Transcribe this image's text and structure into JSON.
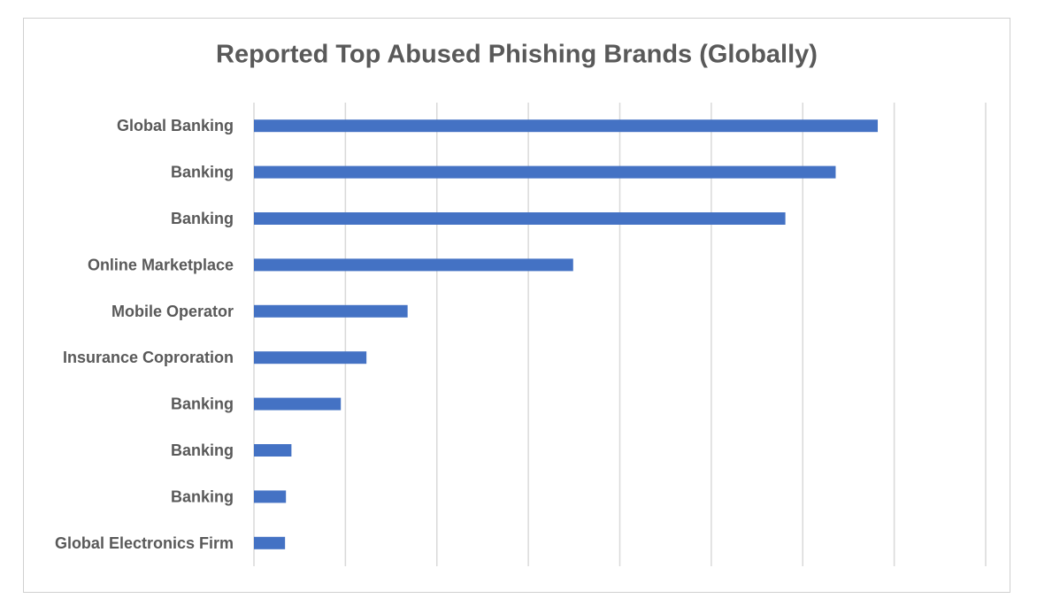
{
  "chart_data": {
    "type": "bar",
    "orientation": "horizontal",
    "title": "Reported Top Abused Phishing Brands (Globally)",
    "xlabel": "",
    "ylabel": "",
    "categories": [
      "Global Banking",
      "Banking",
      "Banking",
      "Online Marketplace",
      "Mobile Operator",
      "Insurance Coproration",
      "Banking",
      "Banking",
      "Banking",
      "Global Electronics Firm"
    ],
    "values": [
      6.82,
      6.36,
      5.81,
      3.49,
      1.68,
      1.23,
      0.95,
      0.41,
      0.35,
      0.34
    ],
    "xlim": [
      0,
      8
    ],
    "grid": "vertical",
    "legend": "none",
    "colors": {
      "bar": "#4472c4",
      "grid": "#d9d9d9",
      "text": "#595959",
      "border": "#d0d0d0"
    }
  }
}
